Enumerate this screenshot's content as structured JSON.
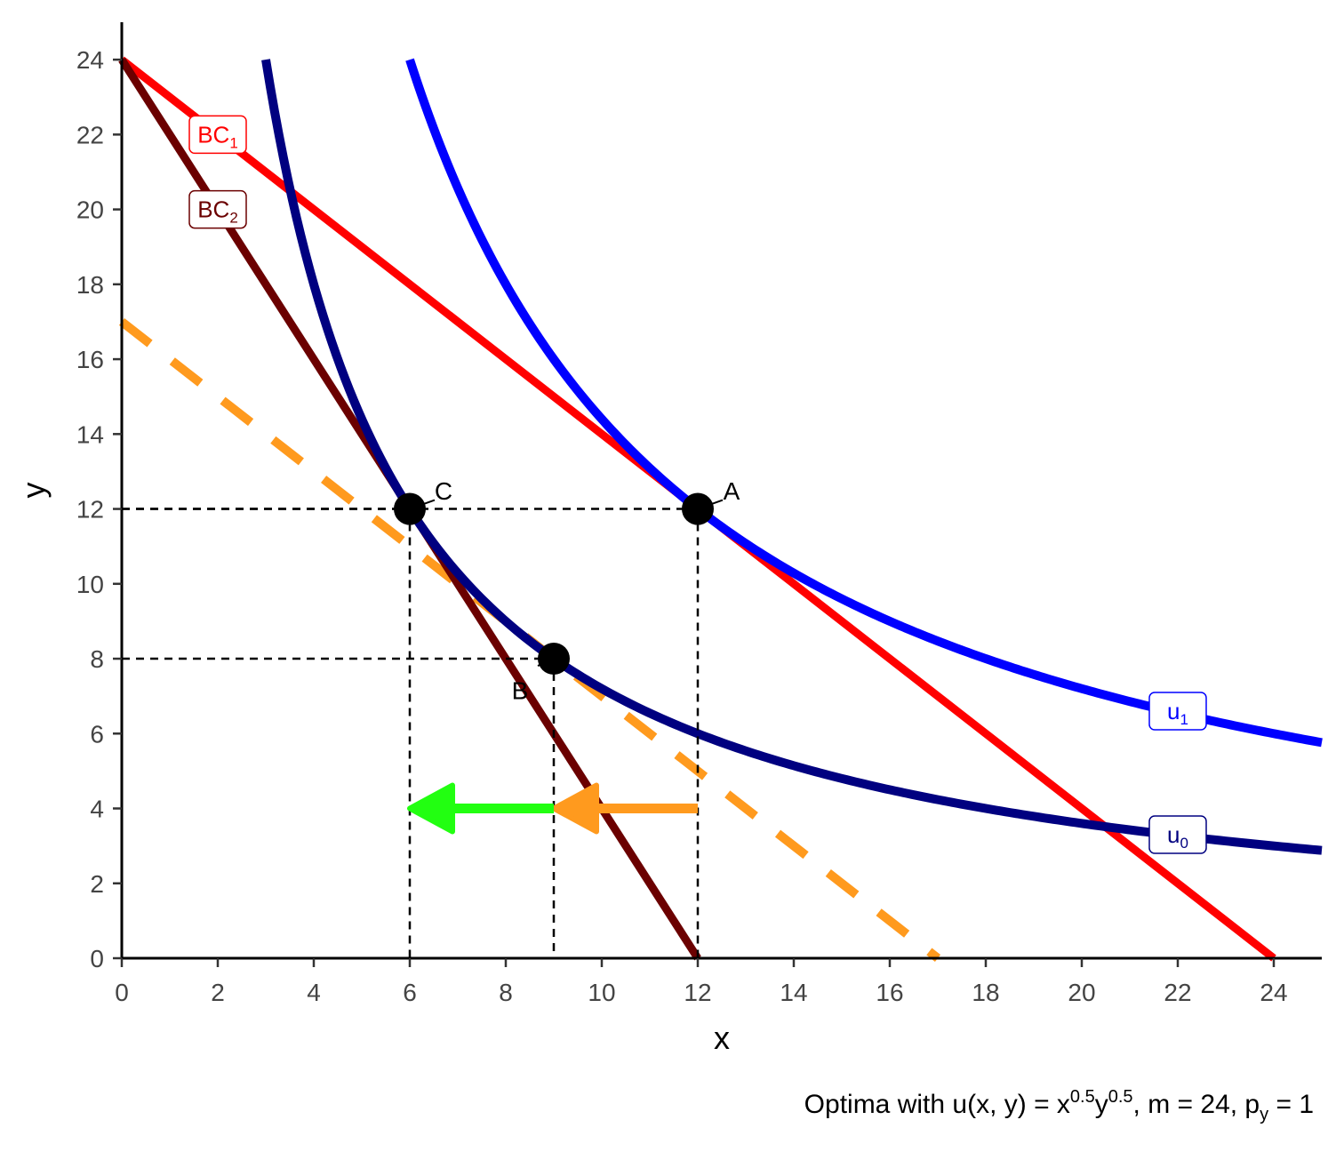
{
  "chart_data": {
    "type": "line",
    "title": "",
    "xlabel": "x",
    "ylabel": "y",
    "xlim": [
      0,
      25
    ],
    "ylim": [
      0,
      25
    ],
    "x_ticks": [
      0,
      2,
      4,
      6,
      8,
      10,
      12,
      14,
      16,
      18,
      20,
      22,
      24
    ],
    "y_ticks": [
      0,
      2,
      4,
      6,
      8,
      10,
      12,
      14,
      16,
      18,
      20,
      22,
      24
    ],
    "grid": false,
    "caption": {
      "prefix": "Optima with u",
      "func": "(x, y) = x",
      "exp1": "0.5",
      "ybase": "y",
      "exp2": "0.5",
      "mid": ", m = 24, p",
      "sub": "y",
      "suffix": " = 1"
    },
    "budget_lines": [
      {
        "label": "BC",
        "sub": "1",
        "color": "#ff0000",
        "points": [
          [
            0,
            24
          ],
          [
            24,
            0
          ]
        ],
        "label_at": [
          2,
          22
        ]
      },
      {
        "label": "BC",
        "sub": "2",
        "color": "#6b0000",
        "points": [
          [
            0,
            24
          ],
          [
            12,
            0
          ]
        ],
        "label_at": [
          2,
          20
        ]
      }
    ],
    "compensated_line": {
      "color": "#ff9a1e",
      "dashed": true,
      "points": [
        [
          0,
          17
        ],
        [
          17,
          0
        ]
      ]
    },
    "indifference_curves": [
      {
        "label": "u",
        "sub": "1",
        "color": "#0000ff",
        "k": 144,
        "x_range": [
          6,
          25
        ],
        "label_at": [
          22,
          6.6
        ]
      },
      {
        "label": "u",
        "sub": "0",
        "color": "#000080",
        "k": 72,
        "x_range": [
          3,
          25
        ],
        "label_at": [
          22,
          3.3
        ]
      }
    ],
    "points": [
      {
        "name": "A",
        "x": 12,
        "y": 12
      },
      {
        "name": "B",
        "x": 9,
        "y": 8
      },
      {
        "name": "C",
        "x": 6,
        "y": 12
      }
    ],
    "guides": [
      {
        "x": 12,
        "y": 12
      },
      {
        "x": 9,
        "y": 8
      },
      {
        "x": 6,
        "y": 12
      }
    ],
    "arrows": [
      {
        "from": [
          12,
          4
        ],
        "to": [
          9,
          4
        ],
        "color": "#ff9a1e"
      },
      {
        "from": [
          9,
          4
        ],
        "to": [
          6,
          4
        ],
        "color": "#22ff11"
      }
    ]
  }
}
